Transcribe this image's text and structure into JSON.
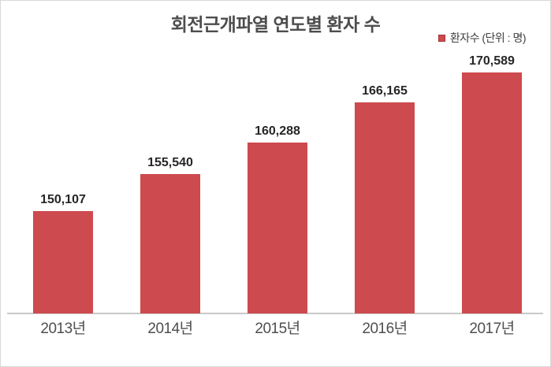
{
  "frame": {
    "background": "#ffffff",
    "border_color": "#d8d8d8"
  },
  "legend": {
    "label": "환자수 (단위 : 명)",
    "marker_color": "#cd4a4e"
  },
  "chart_data": {
    "type": "bar",
    "title": "회전근개파열 연도별 환자 수",
    "categories": [
      "2013년",
      "2014년",
      "2015년",
      "2016년",
      "2017년"
    ],
    "values": [
      150107,
      155540,
      160288,
      166165,
      170589
    ],
    "value_labels": [
      "150,107",
      "155,540",
      "160,288",
      "166,165",
      "170,589"
    ],
    "series_name": "환자수",
    "unit_label": "단위 : 명",
    "legend": "환자수 (단위 : 명)",
    "legend_position": "top-right",
    "xlabel": "",
    "ylabel": "",
    "baseline": 135000,
    "ylim": [
      135000,
      172000
    ],
    "bar_color": "#cd4a4e",
    "grid": false,
    "y_axis_visible": false,
    "x_axis_line_color": "#c9c9c9",
    "text_colors": {
      "title": "#4d4d4d",
      "value_label": "#262626",
      "x_tick": "#4f4f4f",
      "legend": "#3f3f3f"
    }
  }
}
